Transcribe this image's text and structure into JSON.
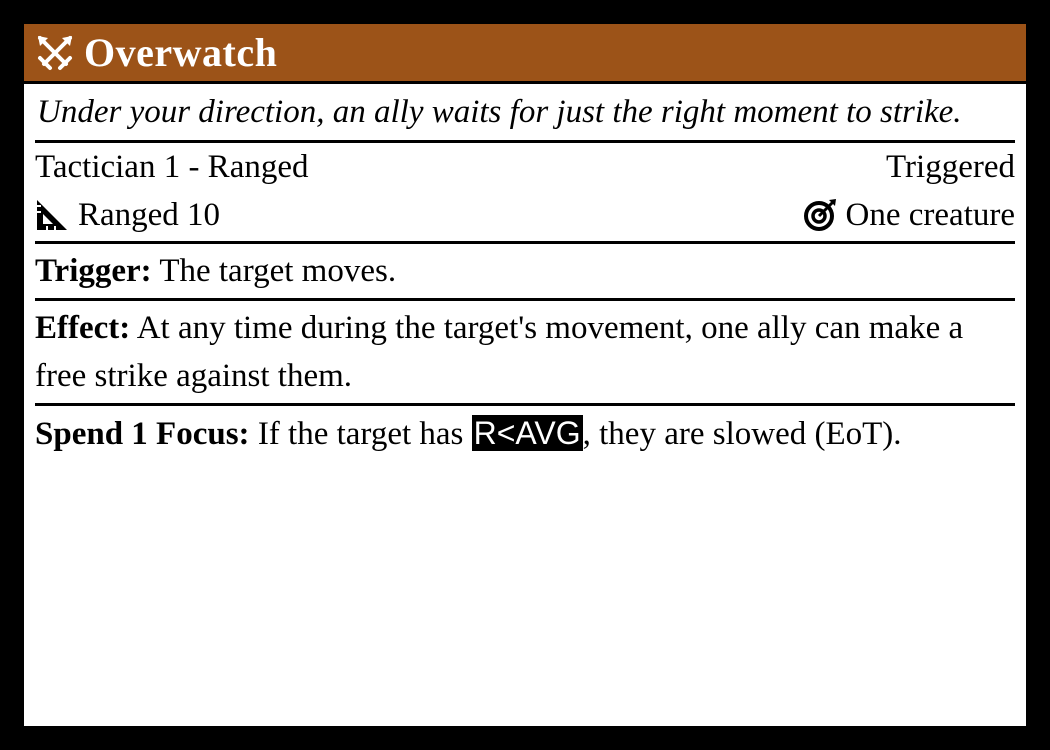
{
  "card": {
    "title": "Overwatch",
    "title_icon": "crossed-swords-icon",
    "flavor": "Under your direction, an ally waits for just the right moment to strike.",
    "source": "Tactician 1 - Ranged",
    "action_type": "Triggered",
    "distance_icon": "ruler-triangle-icon",
    "distance": "Ranged 10",
    "target_icon": "target-icon",
    "target": "One creature",
    "trigger_label": "Trigger:",
    "trigger_text": "The target moves.",
    "effect_label": "Effect:",
    "effect_text": "At any time during the target's movement, one ally can make a free strike against them.",
    "spend_label": "Spend 1 Focus:",
    "spend_text_before": "If the target has",
    "spend_code": "R<AVG",
    "spend_text_after": ", they are slowed (EoT).",
    "colors": {
      "header_bg": "#9c5318",
      "border": "#000000",
      "background": "#ffffff"
    }
  }
}
